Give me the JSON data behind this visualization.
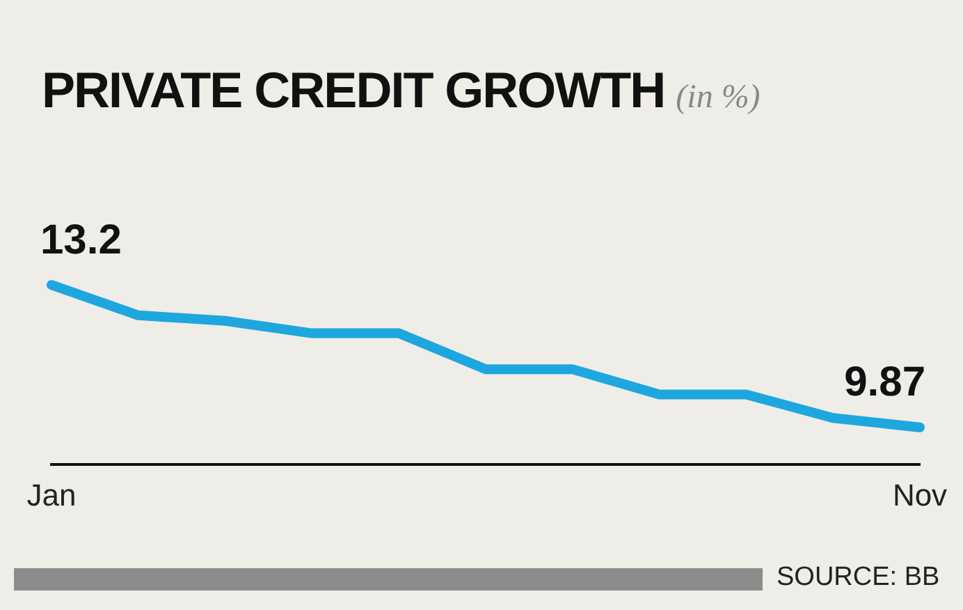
{
  "chart_data": {
    "type": "line",
    "title": "PRIVATE CREDIT GROWTH",
    "subtitle": "(in %)",
    "categories": [
      "Jan",
      null,
      null,
      null,
      null,
      null,
      null,
      null,
      null,
      null,
      "Nov"
    ],
    "series": [
      {
        "color": "#1ea7de",
        "values": [
          13.2,
          12.49,
          12.36,
          12.07,
          12.07,
          11.23,
          11.23,
          10.64,
          10.64,
          10.09,
          9.87
        ],
        "value_labels": [
          "13.2",
          null,
          null,
          null,
          null,
          null,
          null,
          null,
          null,
          null,
          "9.87"
        ]
      }
    ],
    "grid": false,
    "legend": false,
    "marker": "none",
    "line_style": "solid",
    "annotations": [
      "SOURCE: BB"
    ]
  }
}
